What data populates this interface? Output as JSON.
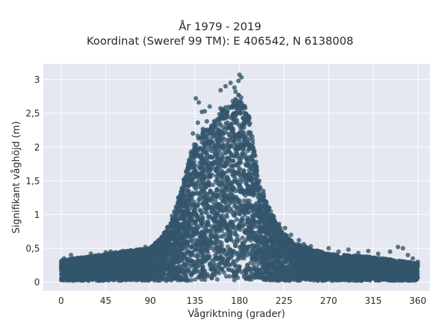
{
  "chart_data": {
    "type": "scatter",
    "title": [
      "År 1979 - 2019",
      "Koordinat (Sweref 99 TM): E 406542, N 6138008"
    ],
    "xlabel": "Vågriktning (grader)",
    "ylabel": "Signifikant våghöjd (m)",
    "xlim": [
      -18,
      372
    ],
    "ylim": [
      -0.13,
      3.23
    ],
    "xticks": [
      0,
      45,
      90,
      135,
      180,
      225,
      270,
      315,
      360
    ],
    "xtick_labels": [
      "0",
      "45",
      "90",
      "135",
      "180",
      "225",
      "270",
      "315",
      "360"
    ],
    "yticks": [
      0,
      0.5,
      1,
      1.5,
      2,
      2.5,
      3
    ],
    "ytick_labels": [
      "0",
      "0,5",
      "1",
      "1,5",
      "2",
      "2,5",
      "3"
    ],
    "grid": true,
    "background": "#e5e8f0",
    "marker_color": "#34566c",
    "envelope": {
      "direction": [
        0,
        45,
        90,
        100,
        110,
        120,
        130,
        140,
        150,
        160,
        170,
        180,
        190,
        200,
        210,
        220,
        230,
        240,
        250,
        270,
        315,
        360
      ],
      "max_height": [
        0.35,
        0.45,
        0.55,
        0.7,
        0.95,
        1.4,
        2.05,
        2.45,
        2.5,
        2.8,
        2.85,
        3.05,
        2.65,
        1.6,
        1.2,
        0.9,
        0.7,
        0.6,
        0.55,
        0.45,
        0.4,
        0.3
      ]
    },
    "points": [
      [
        180,
        3.07
      ],
      [
        182,
        3.03
      ],
      [
        179,
        2.98
      ],
      [
        171,
        2.95
      ],
      [
        166,
        2.9
      ],
      [
        175,
        2.88
      ],
      [
        161,
        2.84
      ],
      [
        176,
        2.82
      ],
      [
        136,
        2.72
      ],
      [
        139,
        2.66
      ],
      [
        150,
        2.6
      ],
      [
        145,
        2.53
      ],
      [
        142,
        2.52
      ],
      [
        186,
        2.5
      ],
      [
        188,
        2.45
      ],
      [
        184,
        2.42
      ],
      [
        147,
        2.38
      ],
      [
        138,
        2.36
      ],
      [
        160,
        2.35
      ],
      [
        190,
        2.33
      ],
      [
        133,
        2.2
      ],
      [
        131,
        1.9
      ],
      [
        170,
        2.1
      ],
      [
        192,
        1.98
      ],
      [
        128,
        1.7
      ],
      [
        124,
        1.52
      ],
      [
        196,
        1.75
      ],
      [
        200,
        1.5
      ],
      [
        204,
        1.35
      ],
      [
        210,
        1.1
      ],
      [
        215,
        0.92
      ],
      [
        220,
        0.86
      ],
      [
        226,
        0.8
      ],
      [
        232,
        0.7
      ],
      [
        240,
        0.62
      ],
      [
        245,
        0.56
      ],
      [
        252,
        0.53
      ],
      [
        118,
        1.25
      ],
      [
        112,
        0.98
      ],
      [
        108,
        0.8
      ],
      [
        104,
        0.72
      ],
      [
        101,
        0.6
      ],
      [
        95,
        0.55
      ],
      [
        90,
        0.5
      ],
      [
        85,
        0.52
      ],
      [
        80,
        0.48
      ],
      [
        70,
        0.47
      ],
      [
        62,
        0.46
      ],
      [
        55,
        0.44
      ],
      [
        50,
        0.45
      ],
      [
        45,
        0.44
      ],
      [
        38,
        0.4
      ],
      [
        30,
        0.42
      ],
      [
        20,
        0.36
      ],
      [
        10,
        0.4
      ],
      [
        3,
        0.35
      ],
      [
        0,
        0.3
      ],
      [
        270,
        0.5
      ],
      [
        280,
        0.45
      ],
      [
        290,
        0.48
      ],
      [
        300,
        0.43
      ],
      [
        310,
        0.46
      ],
      [
        320,
        0.42
      ],
      [
        332,
        0.45
      ],
      [
        340,
        0.52
      ],
      [
        345,
        0.5
      ],
      [
        350,
        0.4
      ],
      [
        355,
        0.35
      ],
      [
        360,
        0.3
      ]
    ]
  }
}
